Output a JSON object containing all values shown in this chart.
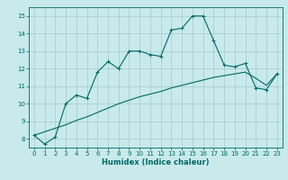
{
  "xlabel": "Humidex (Indice chaleur)",
  "ylabel": "",
  "bg_color": "#c8eaea",
  "grid_color": "#a8d0d0",
  "line_color": "#006868",
  "xlim": [
    -0.5,
    23.5
  ],
  "ylim": [
    7.5,
    15.5
  ],
  "xticks": [
    0,
    1,
    2,
    3,
    4,
    5,
    6,
    7,
    8,
    9,
    10,
    11,
    12,
    13,
    14,
    15,
    16,
    17,
    18,
    19,
    20,
    21,
    22,
    23
  ],
  "yticks": [
    8,
    9,
    10,
    11,
    12,
    13,
    14,
    15
  ],
  "line1_x": [
    0,
    1,
    2,
    3,
    4,
    5,
    6,
    7,
    8,
    9,
    10,
    11,
    12,
    13,
    14,
    15,
    16,
    17,
    18,
    19,
    20,
    21,
    22,
    23
  ],
  "line1_y": [
    8.2,
    7.7,
    8.1,
    10.0,
    10.5,
    10.3,
    11.8,
    12.4,
    12.0,
    13.0,
    13.0,
    12.8,
    12.7,
    14.2,
    14.3,
    15.0,
    15.0,
    13.6,
    12.2,
    12.1,
    12.3,
    10.9,
    10.8,
    11.7
  ],
  "line2_x": [
    0,
    1,
    2,
    3,
    4,
    5,
    6,
    7,
    8,
    9,
    10,
    11,
    12,
    13,
    14,
    15,
    16,
    17,
    18,
    19,
    20,
    21,
    22,
    23
  ],
  "line2_y": [
    8.2,
    8.4,
    8.6,
    8.8,
    9.05,
    9.25,
    9.5,
    9.75,
    10.0,
    10.2,
    10.4,
    10.55,
    10.7,
    10.9,
    11.05,
    11.2,
    11.35,
    11.5,
    11.6,
    11.7,
    11.8,
    11.45,
    11.05,
    11.7
  ]
}
